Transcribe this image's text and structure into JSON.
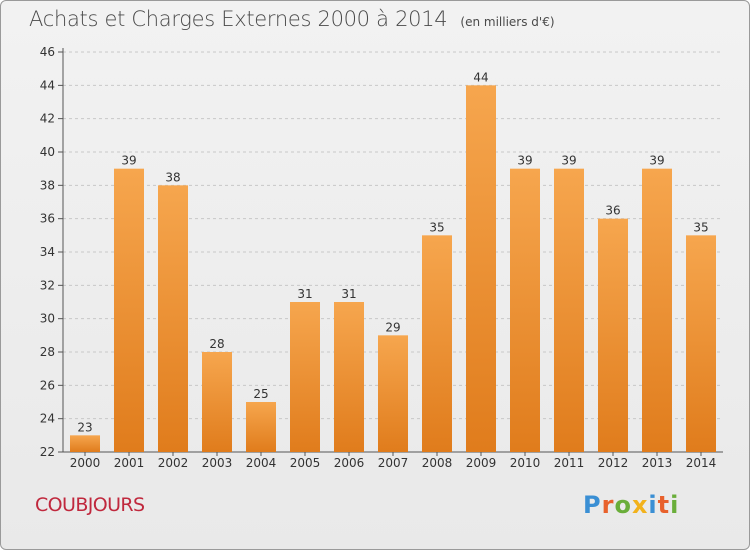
{
  "header": {
    "title": "Achats et Charges Externes 2000 à 2014",
    "unit": "(en milliers d'€)"
  },
  "footer": {
    "commune": "COUBJOURS",
    "logo_letters": [
      "P",
      "r",
      "o",
      "x",
      "i",
      "t",
      "i"
    ],
    "logo_colors": [
      "#3a8fd4",
      "#e8612c",
      "#6aae3a",
      "#f2b21c",
      "#3a8fd4",
      "#e8612c",
      "#6aae3a"
    ]
  },
  "colors": {
    "bar_light": "#f6a64e",
    "bar_dark": "#e07c1c",
    "grid": "#c8c8c8",
    "commune": "#c0283d"
  },
  "chart_data": {
    "type": "bar",
    "categories": [
      "2000",
      "2001",
      "2002",
      "2003",
      "2004",
      "2005",
      "2006",
      "2007",
      "2008",
      "2009",
      "2010",
      "2011",
      "2012",
      "2013",
      "2014"
    ],
    "values": [
      23,
      39,
      38,
      28,
      25,
      31,
      31,
      29,
      35,
      44,
      39,
      39,
      36,
      39,
      35
    ],
    "yticks": [
      22,
      24,
      26,
      28,
      30,
      32,
      34,
      36,
      38,
      40,
      42,
      44,
      46
    ],
    "ylim": [
      22,
      46
    ],
    "grid": true,
    "data_labels": true
  }
}
